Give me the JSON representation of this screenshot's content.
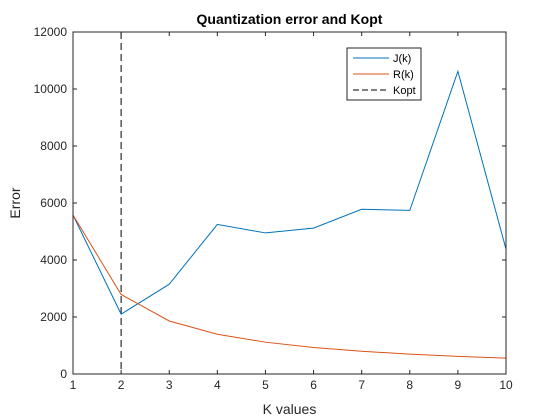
{
  "chart_data": {
    "type": "line",
    "title": "Quantization error and Kopt",
    "xlabel": "K values",
    "ylabel": "Error",
    "xlim": [
      1,
      10
    ],
    "ylim": [
      0,
      12000
    ],
    "x_ticks": [
      "1",
      "2",
      "3",
      "4",
      "5",
      "6",
      "7",
      "8",
      "9",
      "10"
    ],
    "y_ticks": [
      "0",
      "2000",
      "4000",
      "6000",
      "8000",
      "10000",
      "12000"
    ],
    "x": [
      1,
      2,
      3,
      4,
      5,
      6,
      7,
      8,
      9,
      10
    ],
    "series": [
      {
        "name": "J(k)",
        "color": "#0072BD",
        "values": [
          5580,
          2100,
          3150,
          5250,
          4950,
          5120,
          5780,
          5740,
          10620,
          4380
        ]
      },
      {
        "name": "R(k)",
        "color": "#D95319",
        "values": [
          5580,
          2790,
          1860,
          1395,
          1116,
          930,
          797,
          698,
          620,
          558
        ]
      }
    ],
    "vline": {
      "name": "Kopt",
      "x": 2,
      "color": "#000000",
      "style": "dashed"
    },
    "legend": {
      "position": "top-right",
      "entries": [
        "J(k)",
        "R(k)",
        "Kopt"
      ]
    },
    "grid": false
  }
}
